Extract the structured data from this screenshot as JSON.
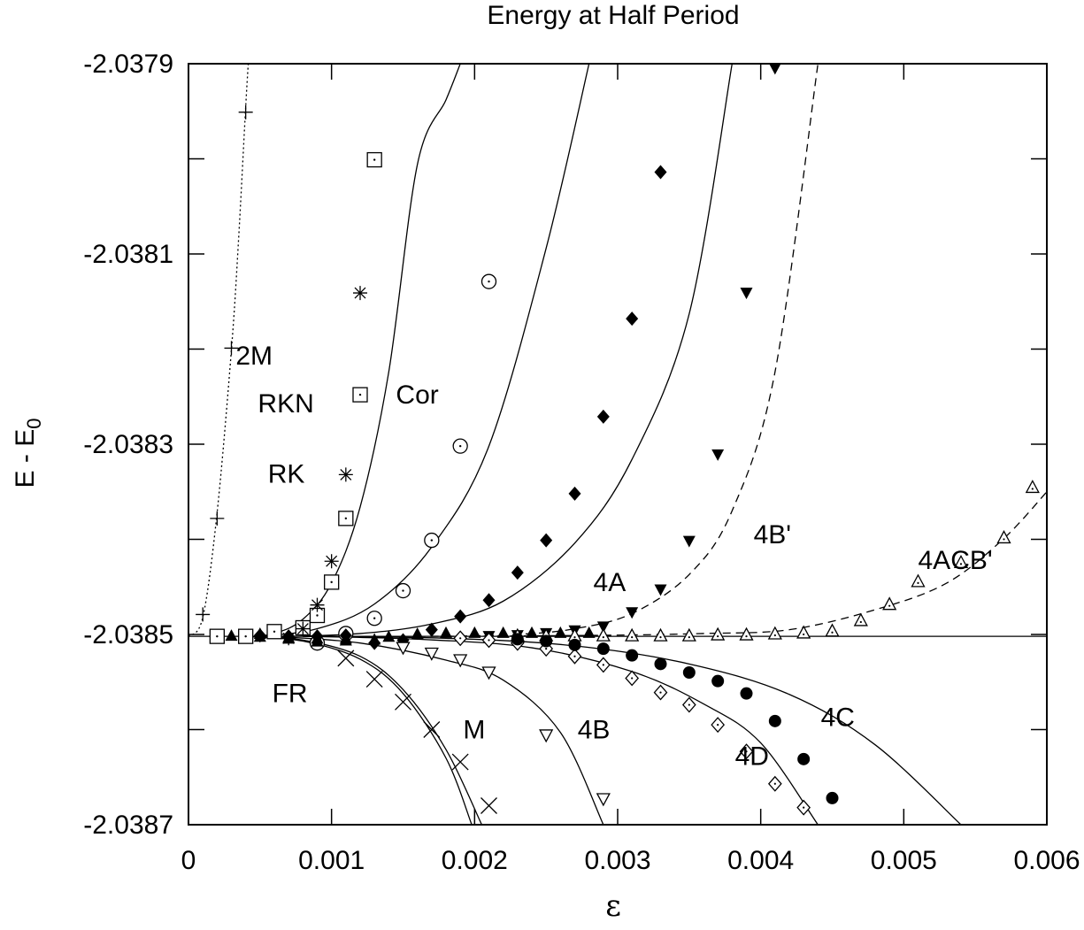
{
  "chart_data": {
    "type": "scatter",
    "title": "Energy at Half Period",
    "xlabel": "ε",
    "ylabel_main": "E - E",
    "ylabel_sub": "0",
    "xlim": [
      0,
      0.006
    ],
    "ylim": [
      -2.0387,
      -2.0379
    ],
    "x_ticks": [
      0,
      0.001,
      0.002,
      0.003,
      0.004,
      0.005,
      0.006
    ],
    "x_tick_labels": [
      "0",
      "0.001",
      "0.002",
      "0.003",
      "0.004",
      "0.005",
      "0.006"
    ],
    "y_ticks": [
      -2.0387,
      -2.0385,
      -2.0383,
      -2.0381,
      -2.0379
    ],
    "y_tick_labels": [
      "-2.0387",
      "-2.0385",
      "-2.0383",
      "-2.0381",
      "-2.0379"
    ],
    "y_minor_ticks": [
      -2.0386,
      -2.0384,
      -2.0382,
      -2.038
    ],
    "grid": false,
    "reference_line": -2.038502,
    "series": [
      {
        "name": "2M",
        "marker": "plus",
        "line": "dotted",
        "x": [
          0.0001,
          0.0002,
          0.0003,
          0.0004
        ],
        "y": [
          -2.038479,
          -2.038378,
          -2.038199,
          -2.037951
        ]
      },
      {
        "name": "RKN",
        "marker": "square-dot",
        "x": [
          0.0002,
          0.0004,
          0.0006,
          0.0008,
          0.0009,
          0.001,
          0.0011,
          0.0012,
          0.0013
        ],
        "y": [
          -2.038502,
          -2.038502,
          -2.038497,
          -2.038493,
          -2.03848,
          -2.038445,
          -2.038378,
          -2.038248,
          -2.038001
        ]
      },
      {
        "name": "RK",
        "marker": "asterisk",
        "x": [
          0.0007,
          0.0008,
          0.0009,
          0.001,
          0.0011,
          0.0012
        ],
        "y": [
          -2.038504,
          -2.038494,
          -2.038469,
          -2.038423,
          -2.038332,
          -2.038141
        ]
      },
      {
        "name": "Cor",
        "marker": "circle-dot",
        "x": [
          0.0009,
          0.0011,
          0.0013,
          0.0015,
          0.0017,
          0.0019,
          0.0021
        ],
        "y": [
          -2.038509,
          -2.038499,
          -2.038483,
          -2.038454,
          -2.038401,
          -2.038302,
          -2.038129
        ]
      },
      {
        "name": "4A",
        "marker": "diamond-filled",
        "x": [
          0.0005,
          0.0007,
          0.0009,
          0.0011,
          0.0013,
          0.0015,
          0.0017,
          0.0019,
          0.0021,
          0.0023,
          0.0025,
          0.0027,
          0.0029,
          0.0031,
          0.0033
        ],
        "y": [
          -2.038501,
          -2.038502,
          -2.038502,
          -2.038501,
          -2.038509,
          -2.038506,
          -2.038495,
          -2.038481,
          -2.038464,
          -2.038435,
          -2.038401,
          -2.038352,
          -2.038271,
          -2.038168,
          -2.038014
        ]
      },
      {
        "name": "4A (triangles)",
        "marker": "triangle-up-filled",
        "x": [
          0.0003,
          0.0005,
          0.0007,
          0.0009,
          0.0011,
          0.0013,
          0.0014,
          0.0016,
          0.0018,
          0.002,
          0.0022,
          0.0024,
          0.0026,
          0.0028
        ],
        "y": [
          -2.038502,
          -2.038503,
          -2.038504,
          -2.038505,
          -2.038507,
          -2.038506,
          -2.038503,
          -2.0385,
          -2.038499,
          -2.038499,
          -2.038499,
          -2.038499,
          -2.038499,
          -2.038499
        ]
      },
      {
        "name": "4B'",
        "marker": "triangle-down-filled",
        "line": "dashed",
        "x": [
          0.0021,
          0.0023,
          0.0025,
          0.0027,
          0.0029,
          0.0031,
          0.0033,
          0.0035,
          0.0037,
          0.0039,
          0.0041
        ],
        "y": [
          -2.038502,
          -2.038501,
          -2.038499,
          -2.038496,
          -2.038492,
          -2.038477,
          -2.038453,
          -2.038402,
          -2.038311,
          -2.038141,
          -2.037905
        ]
      },
      {
        "name": "4ACB'",
        "marker": "triangle-up-dot",
        "line": "dashed",
        "x": [
          0.0023,
          0.0025,
          0.0027,
          0.0029,
          0.0031,
          0.0033,
          0.0035,
          0.0037,
          0.0039,
          0.0041,
          0.0043,
          0.0045,
          0.0047,
          0.0049,
          0.0051,
          0.0054,
          0.0057,
          0.0059
        ],
        "y": [
          -2.038502,
          -2.038502,
          -2.038502,
          -2.038502,
          -2.038502,
          -2.038502,
          -2.038502,
          -2.038501,
          -2.038501,
          -2.0385,
          -2.038499,
          -2.038497,
          -2.038486,
          -2.038469,
          -2.038445,
          -2.038425,
          -2.038399,
          -2.038346
        ]
      },
      {
        "name": "FR",
        "marker": "triangle-up-filled",
        "x": [
          0.0005,
          0.0007,
          0.0009,
          0.0011
        ],
        "y": [
          -2.0385,
          -2.038505,
          -2.038508,
          -2.038505
        ]
      },
      {
        "name": "M",
        "marker": "cross",
        "x": [
          0.0011,
          0.0013,
          0.0015,
          0.0017,
          0.0019,
          0.0021
        ],
        "y": [
          -2.038525,
          -2.038547,
          -2.038571,
          -2.0386,
          -2.038634,
          -2.03868
        ]
      },
      {
        "name": "4B",
        "marker": "triangle-down-open",
        "x": [
          0.0015,
          0.0017,
          0.0019,
          0.0021,
          0.0025,
          0.0029
        ],
        "y": [
          -2.038514,
          -2.03852,
          -2.038527,
          -2.03854,
          -2.038606,
          -2.038673
        ]
      },
      {
        "name": "4D",
        "marker": "diamond-dot",
        "x": [
          0.0019,
          0.0021,
          0.0023,
          0.0025,
          0.0027,
          0.0029,
          0.0031,
          0.0033,
          0.0035,
          0.0037,
          0.0039,
          0.0041,
          0.0043
        ],
        "y": [
          -2.038504,
          -2.038506,
          -2.038509,
          -2.038515,
          -2.038523,
          -2.038532,
          -2.038546,
          -2.038561,
          -2.038574,
          -2.038595,
          -2.038623,
          -2.038657,
          -2.038682
        ]
      },
      {
        "name": "4C",
        "marker": "circle-filled",
        "x": [
          0.0023,
          0.0025,
          0.0027,
          0.0029,
          0.0031,
          0.0033,
          0.0035,
          0.0037,
          0.0039,
          0.0041,
          0.0043,
          0.0045
        ],
        "y": [
          -2.038505,
          -2.038507,
          -2.038511,
          -2.038515,
          -2.038522,
          -2.038531,
          -2.03854,
          -2.038549,
          -2.038562,
          -2.038591,
          -2.038631,
          -2.038672
        ]
      }
    ],
    "curves": [
      {
        "name": "2M fit",
        "line": "dotted",
        "x": [
          0.0,
          0.0001,
          0.0002,
          0.0003,
          0.00035,
          0.0004,
          0.00042
        ],
        "y": [
          -2.038502,
          -2.038482,
          -2.038372,
          -2.038201,
          -2.038085,
          -2.037945,
          -2.037895
        ]
      },
      {
        "name": "RK fit",
        "line": "solid",
        "x": [
          0.0004,
          0.0006,
          0.0008,
          0.001,
          0.0012,
          0.0014,
          0.0016,
          0.0018,
          0.0019
        ],
        "y": [
          -2.038503,
          -2.038499,
          -2.038484,
          -2.038446,
          -2.038366,
          -2.038224,
          -2.038006,
          -2.037938,
          -2.0379
        ]
      },
      {
        "name": "Cor fit",
        "line": "solid",
        "x": [
          0.0005,
          0.0009,
          0.0013,
          0.0017,
          0.0021,
          0.0025,
          0.0028
        ],
        "y": [
          -2.038502,
          -2.038494,
          -2.038468,
          -2.038408,
          -2.038302,
          -2.038094,
          -2.0379
        ]
      },
      {
        "name": "4A fit",
        "line": "solid",
        "x": [
          0.0007,
          0.0012,
          0.0017,
          0.0022,
          0.0027,
          0.0031,
          0.0035,
          0.0038
        ],
        "y": [
          -2.038502,
          -2.038499,
          -2.038489,
          -2.038465,
          -2.038404,
          -2.038316,
          -2.038163,
          -2.0379
        ]
      },
      {
        "name": "4B' fit",
        "line": "dashed",
        "x": [
          0.0018,
          0.0023,
          0.0027,
          0.0031,
          0.0035,
          0.0038,
          0.0041,
          0.0044
        ],
        "y": [
          -2.038502,
          -2.0385,
          -2.038494,
          -2.038478,
          -2.038437,
          -2.03837,
          -2.038224,
          -2.0379
        ]
      },
      {
        "name": "4ACB' fit",
        "line": "dashed",
        "x": [
          0.0016,
          0.0028,
          0.0036,
          0.0042,
          0.0048,
          0.0053,
          0.0057,
          0.006
        ],
        "y": [
          -2.038502,
          -2.038501,
          -2.038499,
          -2.038495,
          -2.038474,
          -2.038446,
          -2.038399,
          -2.03835
        ]
      },
      {
        "name": "M fit 1",
        "line": "solid",
        "x": [
          0.0004,
          0.0008,
          0.0012,
          0.0015,
          0.0018,
          0.00205
        ],
        "y": [
          -2.038502,
          -2.038506,
          -2.038523,
          -2.038558,
          -2.038621,
          -2.0387
        ]
      },
      {
        "name": "M fit 2",
        "line": "solid",
        "x": [
          0.0004,
          0.0008,
          0.0012,
          0.0015,
          0.0018,
          0.00198
        ],
        "y": [
          -2.038502,
          -2.038507,
          -2.038526,
          -2.038562,
          -2.03863,
          -2.0387
        ]
      },
      {
        "name": "4B fit",
        "line": "solid",
        "x": [
          0.0006,
          0.0012,
          0.0018,
          0.0022,
          0.0026,
          0.0029
        ],
        "y": [
          -2.038502,
          -2.038509,
          -2.038527,
          -2.038548,
          -2.038603,
          -2.0387
        ]
      },
      {
        "name": "4D fit",
        "line": "solid",
        "x": [
          0.0008,
          0.0016,
          0.0024,
          0.0031,
          0.0036,
          0.004,
          0.0044
        ],
        "y": [
          -2.038502,
          -2.038505,
          -2.038514,
          -2.038539,
          -2.038573,
          -2.038614,
          -2.0387
        ]
      },
      {
        "name": "4C fit",
        "line": "solid",
        "x": [
          0.0008,
          0.0018,
          0.0027,
          0.0035,
          0.0042,
          0.0048,
          0.0054
        ],
        "y": [
          -2.038502,
          -2.038504,
          -2.038512,
          -2.038531,
          -2.038563,
          -2.038616,
          -2.0387
        ]
      }
    ],
    "annotations": [
      {
        "text": "2M",
        "x": 0.00033,
        "y": -2.038207
      },
      {
        "text": "RKN",
        "x": 0.000485,
        "y": -2.038257
      },
      {
        "text": "RK",
        "x": 0.000555,
        "y": -2.038331
      },
      {
        "text": "Cor",
        "x": 0.00145,
        "y": -2.038248
      },
      {
        "text": "4A",
        "x": 0.00283,
        "y": -2.038445
      },
      {
        "text": "4B'",
        "x": 0.00395,
        "y": -2.038395
      },
      {
        "text": "4ACB'",
        "x": 0.0051,
        "y": -2.038422
      },
      {
        "text": "FR",
        "x": 0.000585,
        "y": -2.038562
      },
      {
        "text": "M",
        "x": 0.00192,
        "y": -2.0386
      },
      {
        "text": "4B",
        "x": 0.00272,
        "y": -2.0386
      },
      {
        "text": "4D",
        "x": 0.00382,
        "y": -2.038628
      },
      {
        "text": "4C",
        "x": 0.00442,
        "y": -2.038587
      }
    ]
  }
}
